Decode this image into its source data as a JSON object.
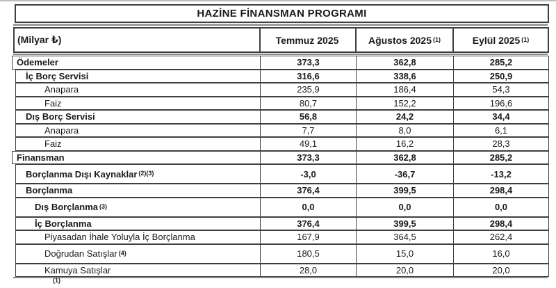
{
  "title": "HAZİNE FİNANSMAN PROGRAMI",
  "unit_label": "(Milyar ₺)",
  "columns": [
    {
      "label": "Temmuz 2025",
      "sup": ""
    },
    {
      "label": "Ağustos 2025",
      "sup": "(1)"
    },
    {
      "label": "Eylül 2025",
      "sup": "(1)"
    }
  ],
  "rows": [
    {
      "label": "Ödemeler",
      "sup": "",
      "level": 0,
      "bold": true,
      "values": [
        "373,3",
        "362,8",
        "285,2"
      ]
    },
    {
      "label": "İç Borç Servisi",
      "sup": "",
      "level": 1,
      "bold": true,
      "values": [
        "316,6",
        "338,6",
        "250,9"
      ]
    },
    {
      "label": "Anapara",
      "sup": "",
      "level": 3,
      "bold": false,
      "values": [
        "235,9",
        "186,4",
        "54,3"
      ]
    },
    {
      "label": "Faiz",
      "sup": "",
      "level": 3,
      "bold": false,
      "values": [
        "80,7",
        "152,2",
        "196,6"
      ]
    },
    {
      "label": "Dış Borç Servisi",
      "sup": "",
      "level": 1,
      "bold": true,
      "values": [
        "56,8",
        "24,2",
        "34,4"
      ]
    },
    {
      "label": "Anapara",
      "sup": "",
      "level": 3,
      "bold": false,
      "values": [
        "7,7",
        "8,0",
        "6,1"
      ]
    },
    {
      "label": "Faiz",
      "sup": "",
      "level": 3,
      "bold": false,
      "values": [
        "49,1",
        "16,2",
        "28,3"
      ]
    },
    {
      "label": "Finansman",
      "sup": "",
      "level": 0,
      "bold": true,
      "values": [
        "373,3",
        "362,8",
        "285,2"
      ]
    },
    {
      "label": "Borçlanma Dışı Kaynaklar",
      "sup": "(2)(3)",
      "level": 1,
      "bold": true,
      "values": [
        "-3,0",
        "-36,7",
        "-13,2"
      ]
    },
    {
      "label": "Borçlanma",
      "sup": "",
      "level": 1,
      "bold": true,
      "values": [
        "376,4",
        "399,5",
        "298,4"
      ]
    },
    {
      "label": "Dış Borçlanma",
      "sup": "(3)",
      "level": 2,
      "bold": true,
      "values": [
        "0,0",
        "0,0",
        "0,0"
      ]
    },
    {
      "label": "İç Borçlanma",
      "sup": "",
      "level": 2,
      "bold": true,
      "values": [
        "376,4",
        "399,5",
        "298,4"
      ]
    },
    {
      "label": "Piyasadan İhale Yoluyla İç Borçlanma",
      "sup": "",
      "level": 3,
      "bold": false,
      "values": [
        "167,9",
        "364,5",
        "262,4"
      ]
    },
    {
      "label": "Doğrudan Satışlar",
      "sup": "(4)",
      "level": 3,
      "bold": false,
      "values": [
        "180,5",
        "15,0",
        "16,0"
      ]
    },
    {
      "label": "Kamuya Satışlar",
      "sup": "",
      "level": 3,
      "bold": false,
      "values": [
        "28,0",
        "20,0",
        "20,0"
      ]
    }
  ],
  "footnote_marker": "(1)",
  "colors": {
    "border": "#3f3f3f",
    "divider_band": "#8e8e8e",
    "text": "#1a1a1a",
    "background": "#ffffff"
  }
}
